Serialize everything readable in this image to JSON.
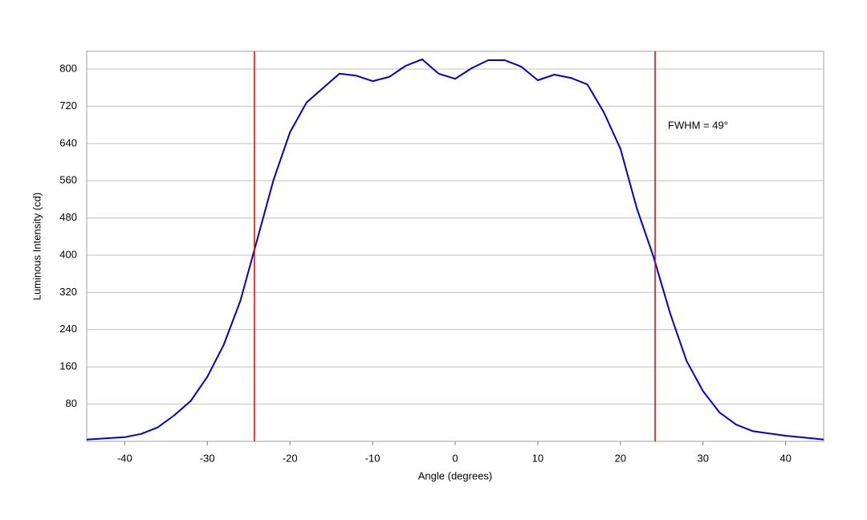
{
  "chart_data": {
    "type": "line",
    "x_label": "Angle (degrees)",
    "y_label": "Luminous Intensity (cd)",
    "annotation": "FWHM = 49°",
    "xlim": [
      -44.6,
      44.6
    ],
    "ylim": [
      0,
      838
    ],
    "xticks": [
      -40,
      -30,
      -20,
      -10,
      0,
      10,
      20,
      30,
      40
    ],
    "yticks": [
      80,
      160,
      240,
      320,
      400,
      480,
      560,
      640,
      720,
      800
    ],
    "grid": true,
    "reference_lines": [
      -24.3,
      24.2
    ],
    "reference_color": "#e00000",
    "x": [
      -44.6,
      -40,
      -38,
      -36,
      -34,
      -32,
      -30,
      -28,
      -26,
      -24,
      -22,
      -20,
      -18,
      -16,
      -14,
      -12,
      -10,
      -8,
      -6,
      -4,
      -2,
      0,
      2,
      4,
      6,
      8,
      10,
      12,
      14,
      16,
      18,
      20,
      22,
      24,
      26,
      28,
      30,
      32,
      34,
      36,
      40,
      44.6
    ],
    "series": [
      {
        "color": "#0000cc",
        "values": [
          4,
          9,
          16,
          30,
          56,
          87,
          139,
          208,
          302,
          431,
          561,
          664,
          728,
          759,
          790,
          786,
          774,
          783,
          807,
          821,
          790,
          779,
          802,
          819,
          819,
          805,
          776,
          788,
          781,
          767,
          707,
          629,
          500,
          397,
          276,
          173,
          108,
          62,
          36,
          22,
          12,
          4
        ]
      }
    ]
  }
}
